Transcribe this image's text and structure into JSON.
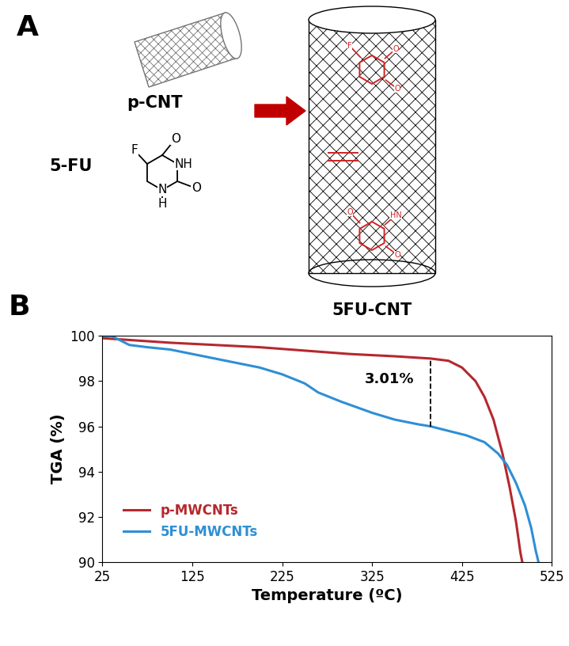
{
  "panel_a": {
    "label": "A",
    "nanotube": "p-CNT",
    "drug": "5-FU",
    "product": "5FU-CNT",
    "drug_atoms": [
      "F",
      "O",
      "NH",
      "O",
      "N",
      "H"
    ],
    "bound_atoms": [
      "F",
      "O",
      "O",
      "O",
      "HN",
      "O"
    ]
  },
  "panel_b_label": "B",
  "chart_data": {
    "type": "line",
    "x_label": "Temperature (ºC)",
    "y_label": "TGA (%)",
    "xlim": [
      25,
      525
    ],
    "xticks": [
      25,
      125,
      225,
      325,
      425,
      525
    ],
    "ylim": [
      90,
      100
    ],
    "yticks": [
      90,
      92,
      94,
      96,
      98,
      100
    ],
    "legend": "lower left",
    "series": [
      {
        "name": "p-MWCNTs",
        "color": "#b5282e",
        "x": [
          25,
          100,
          200,
          300,
          350,
          390,
          410,
          425,
          440,
          450,
          460,
          470,
          478,
          485,
          490,
          492
        ],
        "values": [
          99.9,
          99.7,
          99.5,
          99.2,
          99.1,
          99.0,
          98.9,
          98.6,
          98.0,
          97.3,
          96.3,
          94.8,
          93.3,
          91.8,
          90.4,
          90.0
        ]
      },
      {
        "name": "5FU-MWCNTs",
        "color": "#2e8fd4",
        "x": [
          25,
          35,
          45,
          55,
          75,
          100,
          125,
          150,
          175,
          200,
          225,
          250,
          265,
          290,
          325,
          350,
          375,
          390,
          410,
          430,
          450,
          465,
          475,
          485,
          495,
          502,
          507,
          510
        ],
        "values": [
          100.0,
          100.0,
          99.8,
          99.6,
          99.5,
          99.4,
          99.2,
          99.0,
          98.8,
          98.6,
          98.3,
          97.9,
          97.5,
          97.1,
          96.6,
          96.3,
          96.1,
          96.0,
          95.8,
          95.6,
          95.3,
          94.8,
          94.3,
          93.5,
          92.5,
          91.5,
          90.5,
          90.0
        ]
      }
    ],
    "annotation": {
      "text": "3.01%",
      "x": 390,
      "y": [
        96.0,
        99.0
      ]
    }
  }
}
